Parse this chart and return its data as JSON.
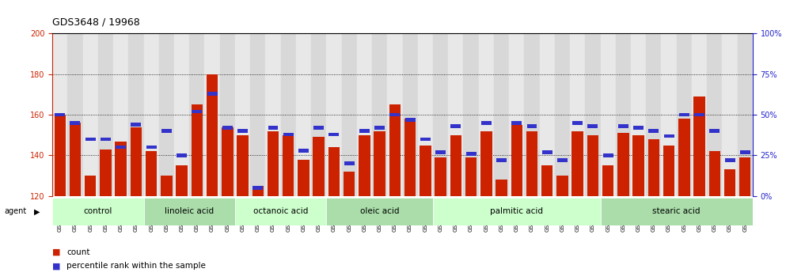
{
  "title": "GDS3648 / 19968",
  "samples": [
    "GSM525196",
    "GSM525197",
    "GSM525198",
    "GSM525199",
    "GSM525200",
    "GSM525201",
    "GSM525202",
    "GSM525203",
    "GSM525204",
    "GSM525205",
    "GSM525206",
    "GSM525207",
    "GSM525208",
    "GSM525209",
    "GSM525210",
    "GSM525211",
    "GSM525212",
    "GSM525213",
    "GSM525214",
    "GSM525215",
    "GSM525216",
    "GSM525217",
    "GSM525218",
    "GSM525219",
    "GSM525220",
    "GSM525221",
    "GSM525222",
    "GSM525223",
    "GSM525224",
    "GSM525225",
    "GSM525226",
    "GSM525227",
    "GSM525228",
    "GSM525229",
    "GSM525230",
    "GSM525231",
    "GSM525232",
    "GSM525233",
    "GSM525234",
    "GSM525235",
    "GSM525236",
    "GSM525237",
    "GSM525238",
    "GSM525239",
    "GSM525240",
    "GSM525241"
  ],
  "counts": [
    160,
    156,
    130,
    143,
    147,
    154,
    142,
    130,
    135,
    165,
    180,
    154,
    150,
    125,
    152,
    150,
    138,
    149,
    144,
    132,
    150,
    152,
    165,
    158,
    145,
    139,
    150,
    139,
    152,
    128,
    155,
    152,
    135,
    130,
    152,
    150,
    135,
    151,
    150,
    148,
    145,
    158,
    169,
    142,
    133,
    139
  ],
  "percentile_ranks": [
    50,
    45,
    35,
    35,
    30,
    44,
    30,
    40,
    25,
    52,
    63,
    42,
    40,
    5,
    42,
    38,
    28,
    42,
    38,
    20,
    40,
    42,
    50,
    47,
    35,
    27,
    43,
    26,
    45,
    22,
    45,
    43,
    27,
    22,
    45,
    43,
    25,
    43,
    42,
    40,
    37,
    50,
    50,
    40,
    22,
    27
  ],
  "groups": [
    {
      "label": "control",
      "start": 0,
      "end": 6
    },
    {
      "label": "linoleic acid",
      "start": 6,
      "end": 12
    },
    {
      "label": "octanoic acid",
      "start": 12,
      "end": 18
    },
    {
      "label": "oleic acid",
      "start": 18,
      "end": 25
    },
    {
      "label": "palmitic acid",
      "start": 25,
      "end": 36
    },
    {
      "label": "stearic acid",
      "start": 36,
      "end": 46
    }
  ],
  "ylim_left": [
    120,
    200
  ],
  "ylim_right": [
    0,
    100
  ],
  "yticks_left": [
    120,
    140,
    160,
    180,
    200
  ],
  "yticks_right": [
    0,
    25,
    50,
    75,
    100
  ],
  "bar_color": "#cc2200",
  "pct_color": "#3333cc",
  "col_bg_even": "#e8e8e8",
  "col_bg_odd": "#d8d8d8",
  "group_colors": [
    "#ccffcc",
    "#aaddaa",
    "#ccffcc",
    "#aaddaa",
    "#ccffcc",
    "#aaddaa"
  ],
  "left_tick_color": "#cc2200",
  "right_tick_color": "#2222cc"
}
